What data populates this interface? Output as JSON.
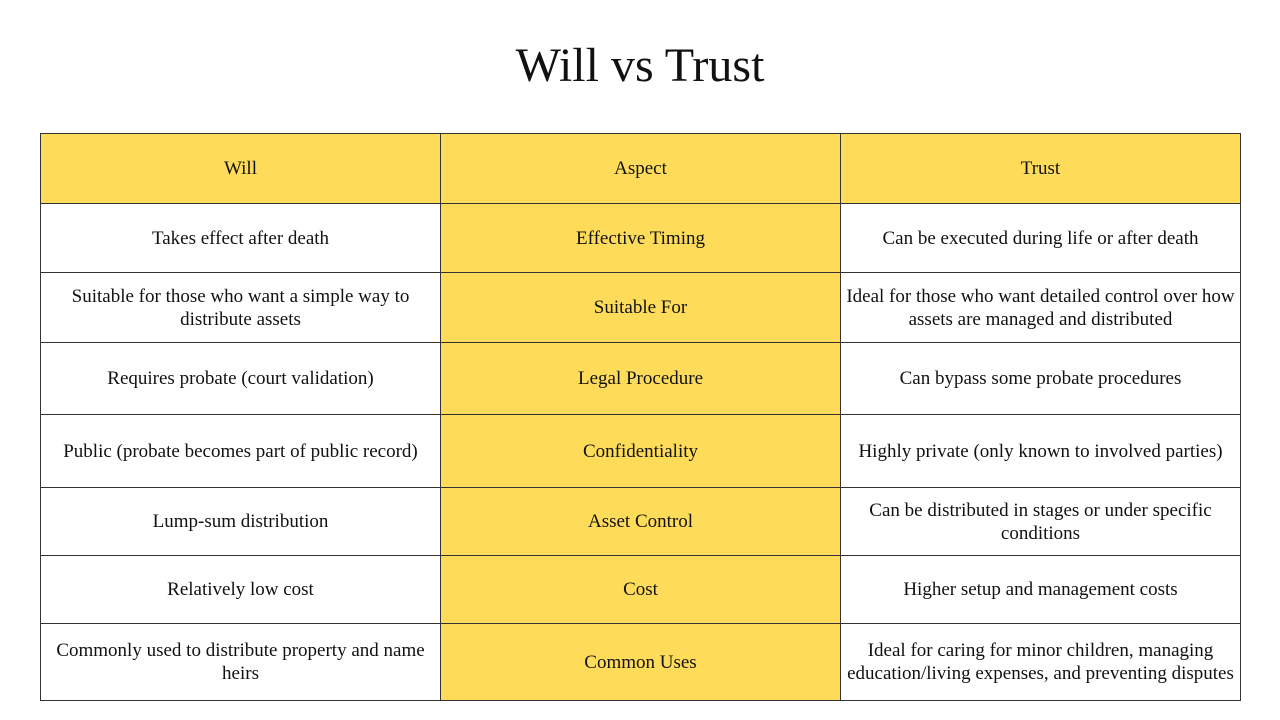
{
  "title": "Will vs Trust",
  "colors": {
    "header_fill": "#FEDC5A",
    "aspect_fill": "#FEDC5A",
    "border": "#333333"
  },
  "table": {
    "headers": [
      "Will",
      "Aspect",
      "Trust"
    ],
    "rows": [
      {
        "will": "Takes effect after death",
        "aspect": "Effective Timing",
        "trust": "Can be executed during life or after death"
      },
      {
        "will": "Suitable for those who want a simple way to distribute assets",
        "aspect": "Suitable For",
        "trust": "Ideal for those who want detailed control over how assets are managed and distributed"
      },
      {
        "will": "Requires probate (court validation)",
        "aspect": "Legal Procedure",
        "trust": "Can bypass some probate procedures"
      },
      {
        "will": "Public (probate becomes part of public record)",
        "aspect": "Confidentiality",
        "trust": "Highly private (only known to involved parties)"
      },
      {
        "will": "Lump-sum distribution",
        "aspect": "Asset Control",
        "trust": "Can be distributed in stages or under specific conditions"
      },
      {
        "will": "Relatively low cost",
        "aspect": "Cost",
        "trust": "Higher setup and management costs"
      },
      {
        "will": "Commonly used to distribute property and name heirs",
        "aspect": "Common Uses",
        "trust": "Ideal for caring for minor children, managing education/living expenses, and preventing disputes"
      }
    ]
  }
}
